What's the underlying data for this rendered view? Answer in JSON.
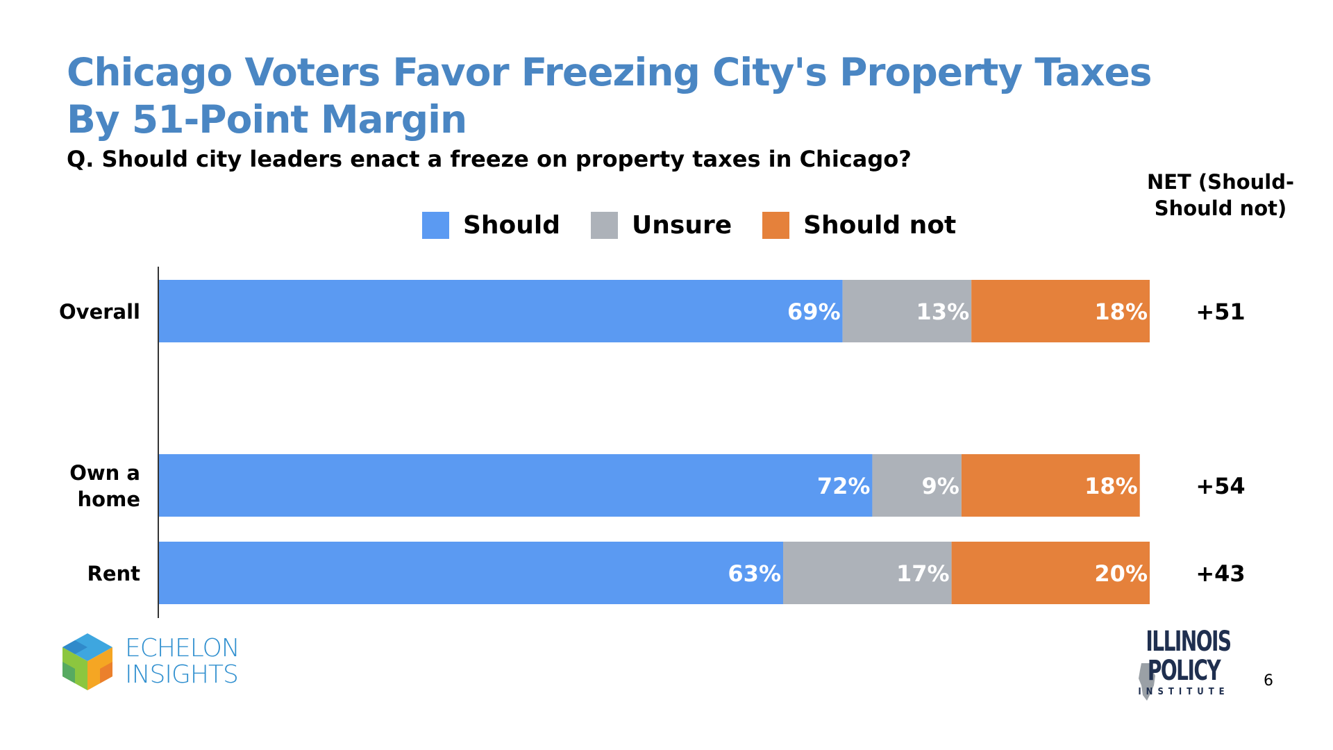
{
  "title": "Chicago Voters Favor Freezing City's Property Taxes By 51-Point Margin",
  "subtitle": "Q. Should city leaders enact a freeze on property taxes in Chicago?",
  "net_header": "NET (Should-Should not)",
  "colors": {
    "should": "#5b9af2",
    "unsure": "#adb2b9",
    "should_not": "#e5813b",
    "title": "#4a86c3"
  },
  "logos": {
    "echelon": "ECHELON INSIGHTS",
    "ipi_line1": "ILLINOIS",
    "ipi_line2": "POLICY",
    "ipi_line3": "INSTITUTE"
  },
  "page_number": "6",
  "chart_data": {
    "type": "bar",
    "orientation": "horizontal",
    "stacked": true,
    "unit": "%",
    "xlim": [
      0,
      100
    ],
    "legend_position": "top",
    "grid": false,
    "categories": [
      "Overall",
      "Own a home",
      "Rent"
    ],
    "series": [
      {
        "name": "Should",
        "values": [
          69,
          72,
          63
        ],
        "labels": [
          "69%",
          "72%",
          "63%"
        ]
      },
      {
        "name": "Unsure",
        "values": [
          13,
          9,
          17
        ],
        "labels": [
          "13%",
          "9%",
          "17%"
        ]
      },
      {
        "name": "Should not",
        "values": [
          18,
          18,
          20
        ],
        "labels": [
          "18%",
          "18%",
          "20%"
        ]
      }
    ],
    "net": [
      "+51",
      "+54",
      "+43"
    ]
  }
}
